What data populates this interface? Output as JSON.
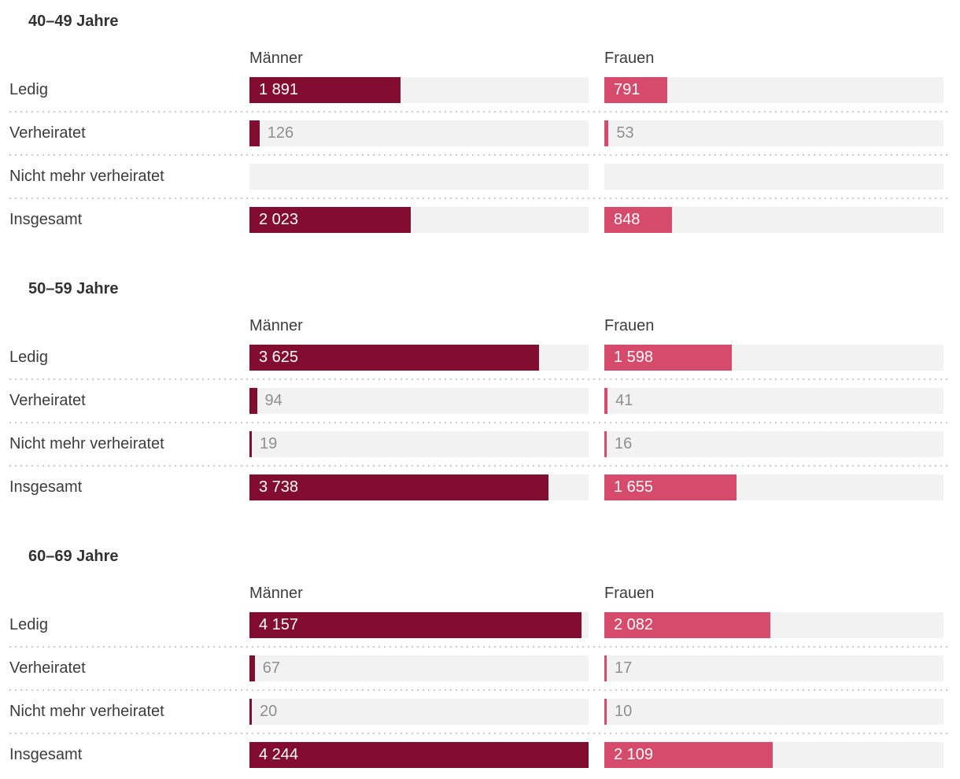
{
  "colors": {
    "maenner_bar": "#820d30",
    "frauen_bar": "#d64a6c",
    "track_background": "#f2f2f2",
    "value_outside_text": "#8f8f8f",
    "value_inside_text": "#ffffff"
  },
  "chart_data": {
    "type": "bar",
    "orientation": "horizontal",
    "grid": false,
    "legend_position": "column-headers",
    "x_max": 4244,
    "column_headers": [
      "Männer",
      "Frauen"
    ],
    "row_labels": [
      "Ledig",
      "Verheiratet",
      "Nicht mehr verheiratet",
      "Insgesamt"
    ],
    "groups": [
      {
        "title": "40–49 Jahre",
        "rows": [
          {
            "label": "Ledig",
            "maenner": 1891,
            "maenner_label": "1 891",
            "frauen": 791,
            "frauen_label": "791"
          },
          {
            "label": "Verheiratet",
            "maenner": 126,
            "maenner_label": "126",
            "frauen": 53,
            "frauen_label": "53"
          },
          {
            "label": "Nicht mehr verheiratet",
            "maenner": null,
            "maenner_label": "",
            "frauen": null,
            "frauen_label": ""
          },
          {
            "label": "Insgesamt",
            "maenner": 2023,
            "maenner_label": "2 023",
            "frauen": 848,
            "frauen_label": "848"
          }
        ]
      },
      {
        "title": "50–59 Jahre",
        "rows": [
          {
            "label": "Ledig",
            "maenner": 3625,
            "maenner_label": "3 625",
            "frauen": 1598,
            "frauen_label": "1 598"
          },
          {
            "label": "Verheiratet",
            "maenner": 94,
            "maenner_label": "94",
            "frauen": 41,
            "frauen_label": "41"
          },
          {
            "label": "Nicht mehr verheiratet",
            "maenner": 19,
            "maenner_label": "19",
            "frauen": 16,
            "frauen_label": "16"
          },
          {
            "label": "Insgesamt",
            "maenner": 3738,
            "maenner_label": "3 738",
            "frauen": 1655,
            "frauen_label": "1 655"
          }
        ]
      },
      {
        "title": "60–69 Jahre",
        "rows": [
          {
            "label": "Ledig",
            "maenner": 4157,
            "maenner_label": "4 157",
            "frauen": 2082,
            "frauen_label": "2 082"
          },
          {
            "label": "Verheiratet",
            "maenner": 67,
            "maenner_label": "67",
            "frauen": 17,
            "frauen_label": "17"
          },
          {
            "label": "Nicht mehr verheiratet",
            "maenner": 20,
            "maenner_label": "20",
            "frauen": 10,
            "frauen_label": "10"
          },
          {
            "label": "Insgesamt",
            "maenner": 4244,
            "maenner_label": "4 244",
            "frauen": 2109,
            "frauen_label": "2 109"
          }
        ]
      }
    ]
  }
}
